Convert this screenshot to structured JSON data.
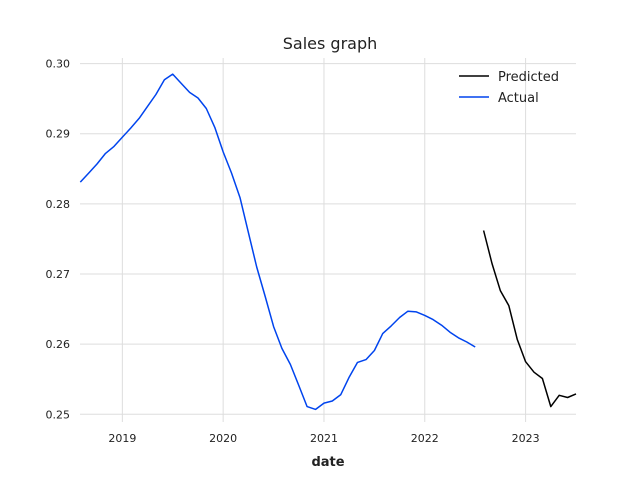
{
  "chart_data": {
    "type": "line",
    "title": "Sales graph",
    "xlabel": "date",
    "ylabel": "",
    "xlim": [
      2018.58,
      2023.5
    ],
    "ylim": [
      0.2489,
      0.3008
    ],
    "x_ticks": [
      2019,
      2020,
      2021,
      2022,
      2023
    ],
    "x_tick_labels": [
      "2019",
      "2020",
      "2021",
      "2022",
      "2023"
    ],
    "y_ticks": [
      0.25,
      0.26,
      0.27,
      0.28,
      0.29,
      0.3
    ],
    "y_tick_labels": [
      "0.25",
      "0.26",
      "0.27",
      "0.28",
      "0.29",
      "0.30"
    ],
    "grid": true,
    "legend_position": "top-right",
    "series": [
      {
        "name": "Predicted",
        "color": "#000000",
        "x": [
          2022.583,
          2022.667,
          2022.75,
          2022.833,
          2022.917,
          2023.0,
          2023.083,
          2023.167,
          2023.25,
          2023.333,
          2023.417,
          2023.5
        ],
        "y": [
          0.2762,
          0.2715,
          0.2676,
          0.2655,
          0.2607,
          0.2575,
          0.256,
          0.2551,
          0.2511,
          0.2527,
          0.2524,
          0.2529
        ]
      },
      {
        "name": "Actual",
        "color": "#0044ee",
        "x": [
          2018.583,
          2018.667,
          2018.75,
          2018.833,
          2018.917,
          2019.0,
          2019.083,
          2019.167,
          2019.25,
          2019.333,
          2019.417,
          2019.5,
          2019.583,
          2019.667,
          2019.75,
          2019.833,
          2019.917,
          2020.0,
          2020.083,
          2020.167,
          2020.25,
          2020.333,
          2020.417,
          2020.5,
          2020.583,
          2020.667,
          2020.75,
          2020.833,
          2020.917,
          2021.0,
          2021.083,
          2021.167,
          2021.25,
          2021.333,
          2021.417,
          2021.5,
          2021.583,
          2021.667,
          2021.75,
          2021.833,
          2021.917,
          2022.0,
          2022.083,
          2022.167,
          2022.25,
          2022.333,
          2022.417,
          2022.5
        ],
        "y": [
          0.2831,
          0.2844,
          0.2857,
          0.2872,
          0.2882,
          0.2895,
          0.2908,
          0.2922,
          0.2939,
          0.2956,
          0.2977,
          0.2985,
          0.2972,
          0.2959,
          0.2951,
          0.2936,
          0.2909,
          0.2874,
          0.2844,
          0.2809,
          0.2759,
          0.271,
          0.2668,
          0.2625,
          0.2594,
          0.2571,
          0.2541,
          0.2511,
          0.2507,
          0.2516,
          0.2519,
          0.2528,
          0.2553,
          0.2574,
          0.2578,
          0.2591,
          0.2615,
          0.2626,
          0.2638,
          0.2647,
          0.2646,
          0.2641,
          0.2635,
          0.2627,
          0.2617,
          0.2609,
          0.2603,
          0.2596
        ]
      }
    ]
  }
}
